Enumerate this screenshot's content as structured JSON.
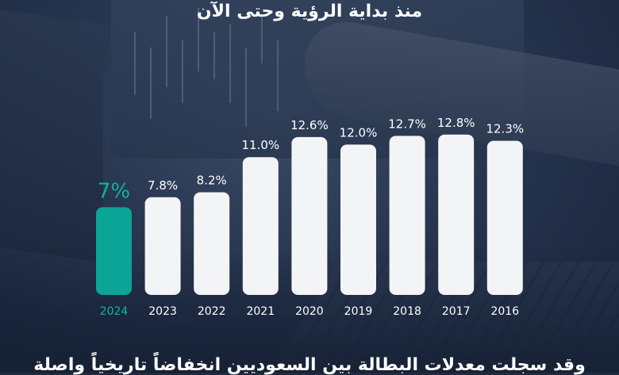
{
  "header": {
    "title": "منذ بداية الرؤية وحتى الآن"
  },
  "footer": {
    "text": "وقد سجلت معدلات البطالة بين السعوديين انخفاضاً تاريخياً واصلة"
  },
  "colors": {
    "highlight_bar": "#0aa596",
    "highlight_label": "#0fb4a3",
    "bar": "#f3f4f6",
    "value_label": "#ffffff",
    "year_label": "#ffffff"
  },
  "chart_data": {
    "type": "bar",
    "categories": [
      "2024",
      "2023",
      "2022",
      "2021",
      "2020",
      "2019",
      "2018",
      "2017",
      "2016"
    ],
    "values": [
      7,
      7.8,
      8.2,
      11.0,
      12.6,
      12.0,
      12.7,
      12.8,
      12.3
    ],
    "value_labels": [
      "7%",
      "7.8%",
      "8.2%",
      "11.0%",
      "12.6%",
      "12.0%",
      "12.7%",
      "12.8%",
      "12.3%"
    ],
    "highlight_category": "2024",
    "title": "منذ بداية الرؤية وحتى الآن",
    "xlabel": "",
    "ylabel": "",
    "grid": false,
    "legend": "none"
  }
}
